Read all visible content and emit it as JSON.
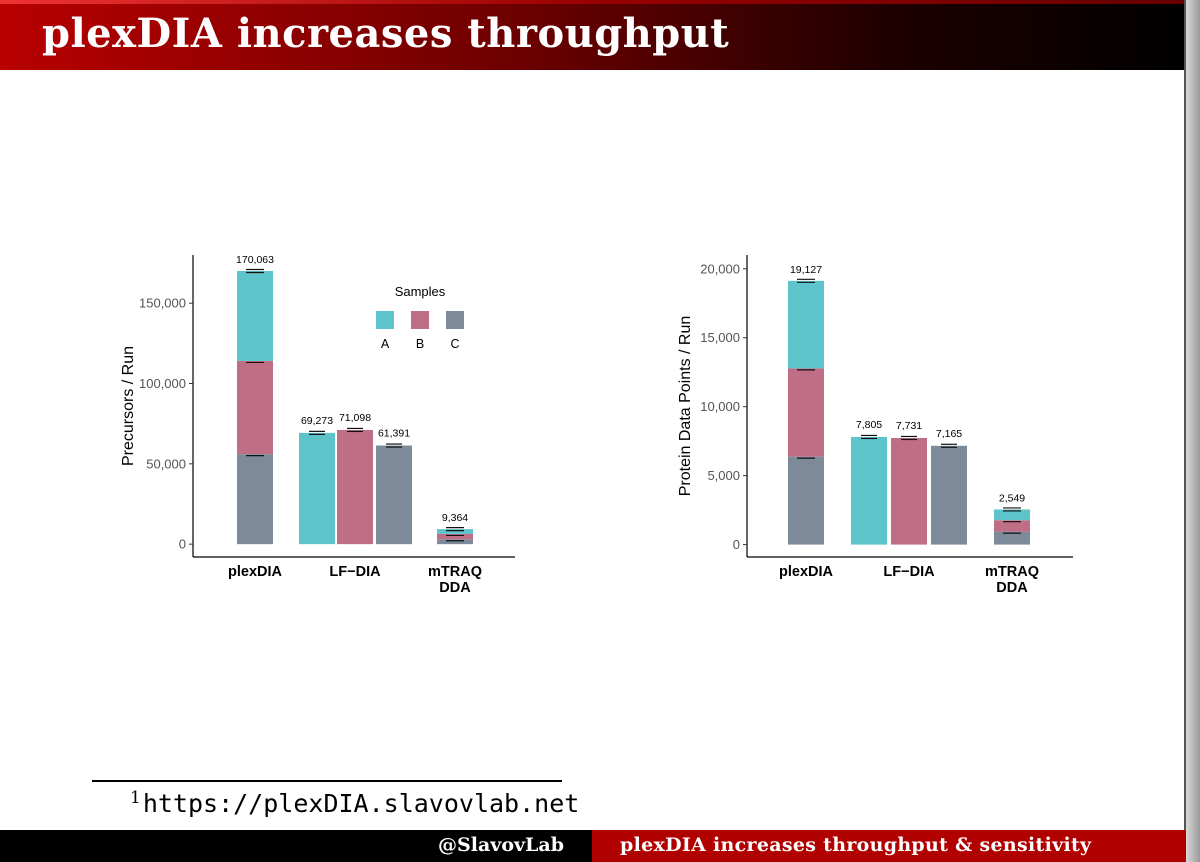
{
  "slide": {
    "title": "plexDIA increases throughput",
    "footnote_marker": "1",
    "footnote_url": "https://plexDIA.slavovlab.net",
    "footer_left": "@SlavovLab",
    "footer_right": "plexDIA increases throughput & sensitivity"
  },
  "colors": {
    "A": "#5ec4cc",
    "B": "#c06e85",
    "C": "#7d8a9a"
  },
  "legend": {
    "title": "Samples",
    "labels": [
      "A",
      "B",
      "C"
    ]
  },
  "chart_data": [
    {
      "type": "bar",
      "ylabel": "Precursors / Run",
      "ylim": [
        0,
        180000
      ],
      "yticks": [
        0,
        50000,
        100000,
        150000
      ],
      "ytick_labels": [
        "0",
        "50,000",
        "100,000",
        "150,000"
      ],
      "categories": [
        "plexDIA",
        "LF−DIA",
        "mTRAQ DDA"
      ],
      "stacked": [
        {
          "category": "plexDIA",
          "total": 170063,
          "total_label": "170,063",
          "A": 56000,
          "B": 58000,
          "C": 56063
        },
        {
          "category": "mTRAQ DDA",
          "total": 9364,
          "total_label": "9,364",
          "A": 3000,
          "B": 3300,
          "C": 3064
        }
      ],
      "single": [
        {
          "category": "LF−DIA",
          "sample": "A",
          "value": 69273,
          "label": "69,273"
        },
        {
          "category": "LF−DIA",
          "sample": "B",
          "value": 71098,
          "label": "71,098"
        },
        {
          "category": "LF−DIA",
          "sample": "C",
          "value": 61391,
          "label": "61,391"
        }
      ],
      "show_legend": true
    },
    {
      "type": "bar",
      "ylabel": "Protein Data Points / Run",
      "ylim": [
        0,
        21000
      ],
      "yticks": [
        0,
        5000,
        10000,
        15000,
        20000
      ],
      "ytick_labels": [
        "0",
        "5,000",
        "10,000",
        "15,000",
        "20,000"
      ],
      "categories": [
        "plexDIA",
        "LF−DIA",
        "mTRAQ DDA"
      ],
      "stacked": [
        {
          "category": "plexDIA",
          "total": 19127,
          "total_label": "19,127",
          "A": 6350,
          "B": 6400,
          "C": 6377
        },
        {
          "category": "mTRAQ DDA",
          "total": 2549,
          "total_label": "2,549",
          "A": 780,
          "B": 830,
          "C": 939
        }
      ],
      "single": [
        {
          "category": "LF−DIA",
          "sample": "A",
          "value": 7805,
          "label": "7,805"
        },
        {
          "category": "LF−DIA",
          "sample": "B",
          "value": 7731,
          "label": "7,731"
        },
        {
          "category": "LF−DIA",
          "sample": "C",
          "value": 7165,
          "label": "7,165"
        }
      ],
      "show_legend": false
    }
  ]
}
